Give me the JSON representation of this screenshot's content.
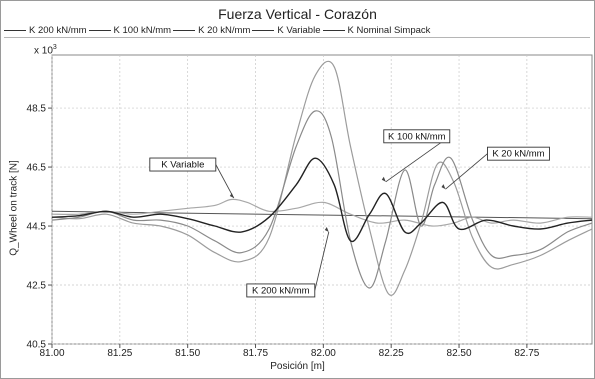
{
  "chart_data": {
    "type": "line",
    "title": "Fuerza Vertical - Corazón",
    "xlabel": "Posición [m]",
    "ylabel": "Q_Wheel on track [N]",
    "y_scale_label": "x 10",
    "y_scale_exponent": "3",
    "xlim": [
      81.0,
      82.99
    ],
    "ylim": [
      40.5,
      50.3
    ],
    "x_ticks": [
      81.0,
      81.25,
      81.5,
      81.75,
      82.0,
      82.25,
      82.5,
      82.75
    ],
    "x_tick_labels": [
      "81.00",
      "81.25",
      "81.50",
      "81.75",
      "82.00",
      "82.25",
      "82.50",
      "82.75"
    ],
    "y_ticks": [
      40.5,
      42.5,
      44.5,
      46.5,
      48.5
    ],
    "y_tick_labels": [
      "40.5",
      "42.5",
      "44.5",
      "46.5",
      "48.5"
    ],
    "grid": true,
    "legend_position": "top",
    "legend": [
      "K 200 kN/mm",
      "K 100 kN/mm",
      "K 20 kN/mm",
      "K Variable",
      "K Nominal Simpack"
    ],
    "series": [
      {
        "name": "K 200 kN/mm",
        "color": "#222222",
        "x": [
          81.0,
          81.1,
          81.2,
          81.3,
          81.4,
          81.5,
          81.6,
          81.7,
          81.8,
          81.9,
          81.97,
          82.04,
          82.1,
          82.17,
          82.23,
          82.3,
          82.36,
          82.44,
          82.5,
          82.6,
          82.7,
          82.8,
          82.9,
          82.99
        ],
        "y": [
          44.8,
          44.85,
          45.0,
          44.8,
          44.9,
          44.75,
          44.5,
          44.3,
          44.8,
          45.9,
          46.8,
          45.9,
          44.0,
          44.9,
          45.6,
          44.3,
          44.6,
          45.3,
          44.4,
          44.7,
          44.5,
          44.4,
          44.6,
          44.7
        ]
      },
      {
        "name": "K 100 kN/mm",
        "color": "#8a8a8a",
        "x": [
          81.0,
          81.1,
          81.2,
          81.3,
          81.4,
          81.5,
          81.6,
          81.7,
          81.8,
          81.9,
          81.97,
          82.03,
          82.1,
          82.17,
          82.23,
          82.3,
          82.36,
          82.41,
          82.47,
          82.55,
          82.62,
          82.7,
          82.8,
          82.9,
          82.99
        ],
        "y": [
          44.7,
          44.8,
          45.0,
          44.7,
          44.7,
          44.5,
          44.0,
          43.6,
          44.4,
          47.2,
          48.4,
          47.5,
          44.0,
          42.4,
          44.0,
          46.4,
          44.5,
          45.9,
          46.8,
          44.7,
          43.5,
          43.5,
          43.7,
          44.3,
          44.6
        ]
      },
      {
        "name": "K 20 kN/mm",
        "color": "#9c9c9c",
        "x": [
          81.0,
          81.1,
          81.2,
          81.3,
          81.4,
          81.5,
          81.6,
          81.7,
          81.8,
          81.9,
          81.97,
          82.04,
          82.1,
          82.17,
          82.24,
          82.3,
          82.36,
          82.42,
          82.48,
          82.55,
          82.62,
          82.7,
          82.8,
          82.9,
          82.99
        ],
        "y": [
          44.8,
          44.75,
          44.9,
          44.6,
          44.5,
          44.2,
          43.6,
          43.3,
          44.1,
          47.6,
          49.6,
          49.9,
          47.2,
          44.4,
          42.2,
          43.0,
          44.6,
          46.6,
          46.0,
          44.1,
          43.1,
          43.2,
          43.5,
          44.0,
          44.4
        ]
      },
      {
        "name": "K Variable",
        "color": "#a8a8a8",
        "x": [
          81.0,
          81.1,
          81.2,
          81.3,
          81.4,
          81.5,
          81.6,
          81.66,
          81.72,
          81.8,
          81.9,
          82.0,
          82.1,
          82.2,
          82.3,
          82.4,
          82.48,
          82.55,
          82.62,
          82.7,
          82.8,
          82.9,
          82.99
        ],
        "y": [
          44.9,
          44.9,
          45.0,
          44.9,
          45.0,
          45.1,
          45.2,
          45.4,
          45.3,
          45.0,
          45.1,
          45.3,
          44.9,
          44.6,
          44.7,
          44.5,
          44.6,
          44.8,
          44.6,
          44.7,
          44.6,
          44.8,
          44.8
        ]
      },
      {
        "name": "K Nominal Simpack",
        "color": "#555555",
        "x": [
          81.0,
          82.99
        ],
        "y": [
          45.0,
          44.75
        ]
      }
    ],
    "annotations": [
      {
        "text": "K Variable",
        "series": "K Variable",
        "anchor_x": 81.67,
        "anchor_y": 45.45
      },
      {
        "text": "K 100 kN/mm",
        "series": "K 100 kN/mm",
        "anchor_x": 82.23,
        "anchor_y": 46.0
      },
      {
        "text": "K 20 kN/mm",
        "series": "K 20 kN/mm",
        "anchor_x": 82.45,
        "anchor_y": 45.75
      },
      {
        "text": "K 200 kN/mm",
        "series": "K 200 kN/mm",
        "anchor_x": 82.02,
        "anchor_y": 44.3
      }
    ]
  }
}
